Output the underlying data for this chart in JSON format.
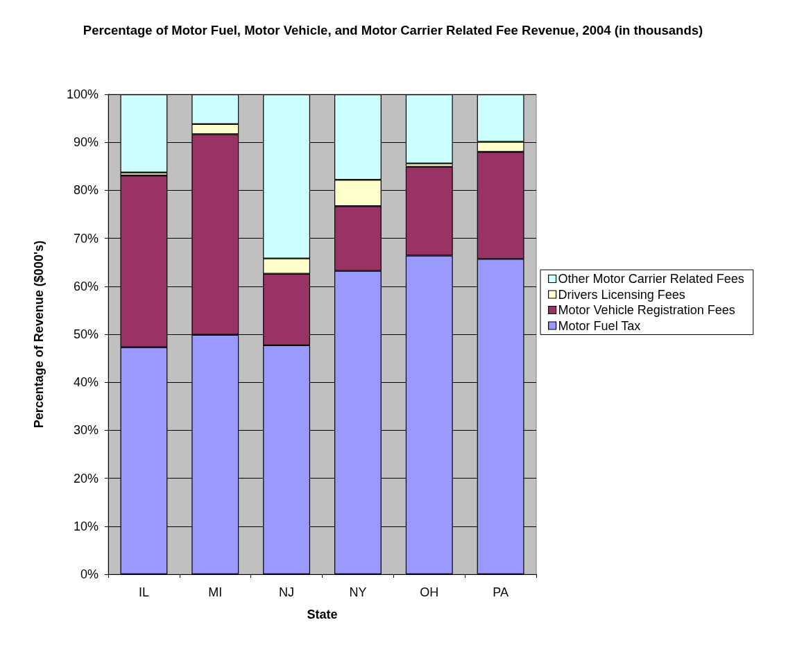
{
  "chart_data": {
    "type": "bar",
    "title": "Percentage of Motor Fuel, Motor Vehicle, and Motor Carrier Related Fee Revenue, 2004 (in thousands)",
    "xlabel": "State",
    "ylabel": "Percentage of Revenue ($000's)",
    "categories": [
      "IL",
      "MI",
      "NJ",
      "NY",
      "OH",
      "PA"
    ],
    "series": [
      {
        "name": "Motor Fuel Tax",
        "color": "#9999ff",
        "values": [
          47.3,
          49.9,
          47.7,
          63.2,
          66.4,
          65.7
        ]
      },
      {
        "name": "Motor Vehicle Registration Fees",
        "color": "#993366",
        "values": [
          35.8,
          41.8,
          14.9,
          13.5,
          18.5,
          22.3
        ]
      },
      {
        "name": "Drivers Licensing Fees",
        "color": "#ffffcc",
        "values": [
          0.6,
          2.1,
          3.2,
          5.5,
          0.7,
          2.1
        ]
      },
      {
        "name": "Other Motor Carrier Related Fees",
        "color": "#ccffff",
        "values": [
          16.3,
          6.2,
          34.2,
          17.8,
          14.4,
          9.9
        ]
      }
    ],
    "stacked": true,
    "ylim": [
      0,
      100
    ],
    "yticks": [
      {
        "value": 0,
        "label": "0%"
      },
      {
        "value": 10,
        "label": "10%"
      },
      {
        "value": 20,
        "label": "20%"
      },
      {
        "value": 30,
        "label": "30%"
      },
      {
        "value": 40,
        "label": "40%"
      },
      {
        "value": 50,
        "label": "50%"
      },
      {
        "value": 60,
        "label": "60%"
      },
      {
        "value": 70,
        "label": "70%"
      },
      {
        "value": 80,
        "label": "80%"
      },
      {
        "value": 90,
        "label": "90%"
      },
      {
        "value": 100,
        "label": "100%"
      }
    ],
    "grid": "y",
    "legend": "right"
  }
}
